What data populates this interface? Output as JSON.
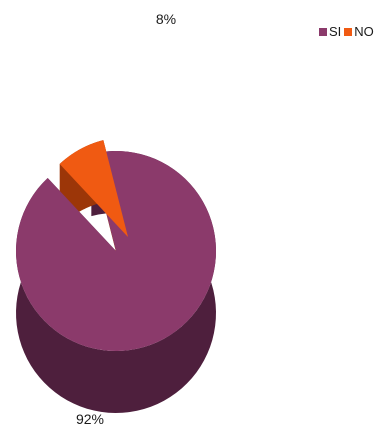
{
  "chart_data": {
    "type": "pie",
    "title": "",
    "categories": [
      "SI",
      "NO"
    ],
    "values": [
      92,
      8
    ],
    "labels": [
      "92%",
      "8%"
    ],
    "colors": [
      "#8b3a6b",
      "#f05a12"
    ],
    "side_colors": [
      "#4e1f3d",
      "#9c3608"
    ],
    "exploded": [
      false,
      true
    ],
    "three_d": true,
    "legend_position": "top-right"
  },
  "legend": {
    "items": [
      {
        "label": "SI",
        "color": "#8b3a6b"
      },
      {
        "label": "NO",
        "color": "#f05a12"
      }
    ]
  }
}
